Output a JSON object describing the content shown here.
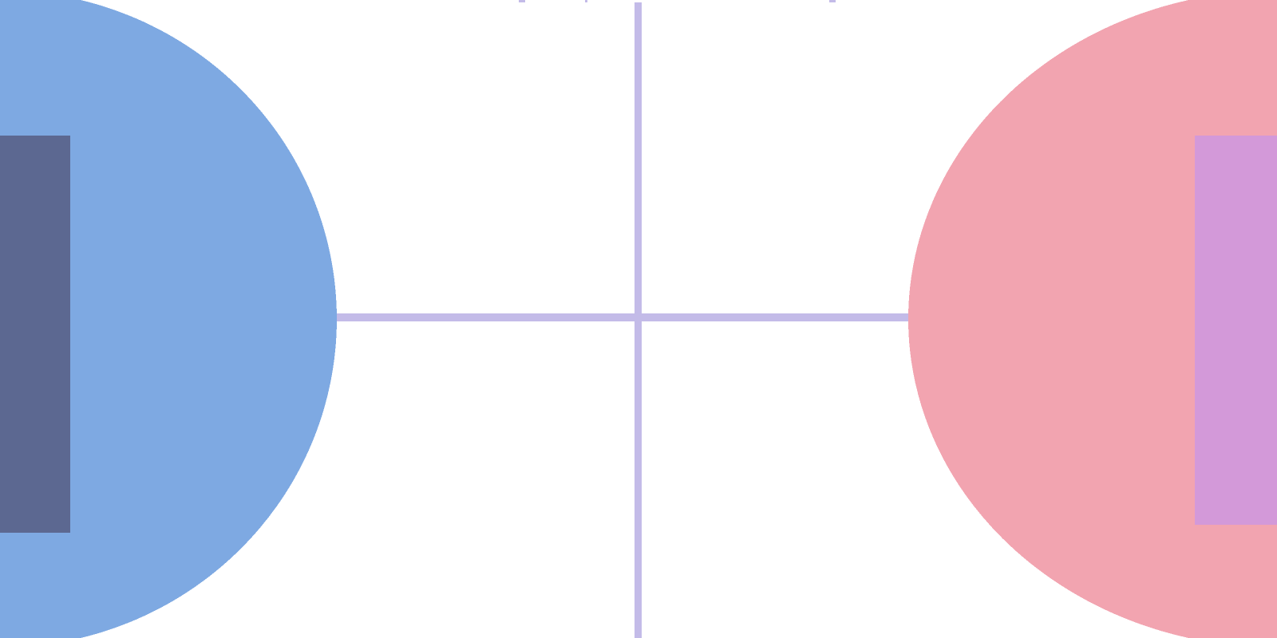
{
  "game": {
    "view": "top-down arena",
    "colors": {
      "background": "#ffffff",
      "court_line": "#c3bbe8",
      "left_zone": "#7ea9e2",
      "left_goal": "#5c6891",
      "right_zone": "#f2a4b0",
      "right_goal": "#d399d9"
    },
    "sides": {
      "left": {
        "team_color_name": "blue"
      },
      "right": {
        "team_color_name": "pink"
      }
    }
  }
}
